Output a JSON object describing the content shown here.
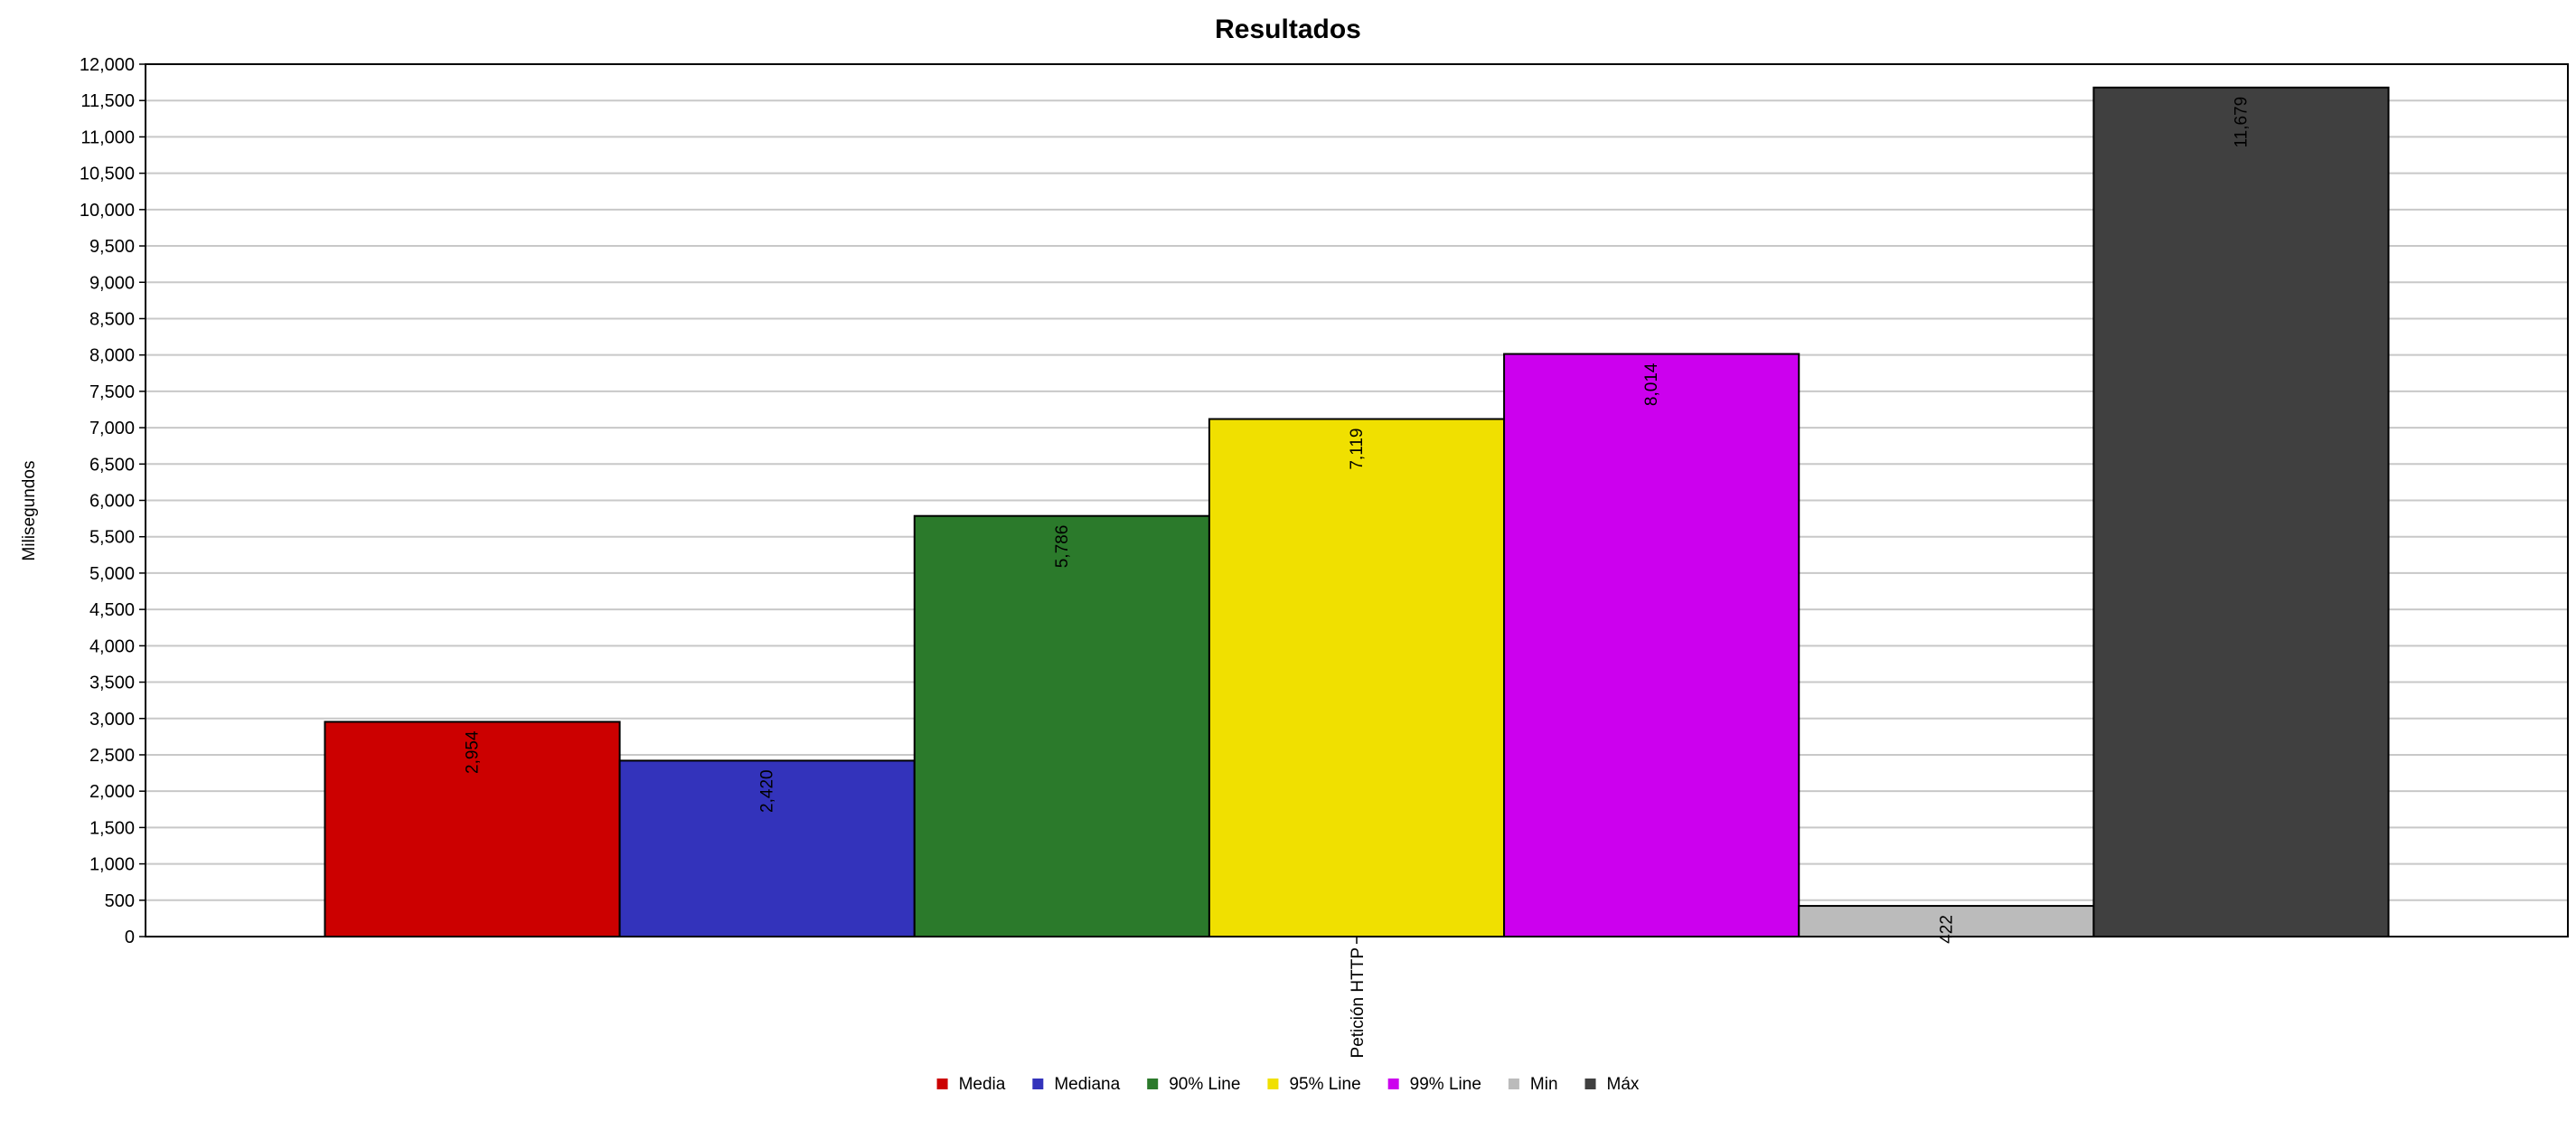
{
  "chart_data": {
    "type": "bar",
    "title": "Resultados",
    "ylabel": "Milisegundos",
    "xlabel": "",
    "categories": [
      "Petición HTTP"
    ],
    "ylim": [
      0,
      12000
    ],
    "ytick_step": 500,
    "grid": true,
    "legend_position": "bottom",
    "data_label_orientation": "vertical",
    "series": [
      {
        "name": "Media",
        "values": [
          2954
        ],
        "label": "2,954",
        "color": "#cc0000"
      },
      {
        "name": "Mediana",
        "values": [
          2420
        ],
        "label": "2,420",
        "color": "#3333bb"
      },
      {
        "name": "90% Line",
        "values": [
          5786
        ],
        "label": "5,786",
        "color": "#2b7a2b"
      },
      {
        "name": "95% Line",
        "values": [
          7119
        ],
        "label": "7,119",
        "color": "#f0e000"
      },
      {
        "name": "99% Line",
        "values": [
          8014
        ],
        "label": "8,014",
        "color": "#cc00ee"
      },
      {
        "name": "Min",
        "values": [
          422
        ],
        "label": "422",
        "color": "#bbbbbb"
      },
      {
        "name": "Máx",
        "values": [
          11679
        ],
        "label": "11,679",
        "color": "#404040"
      }
    ]
  }
}
